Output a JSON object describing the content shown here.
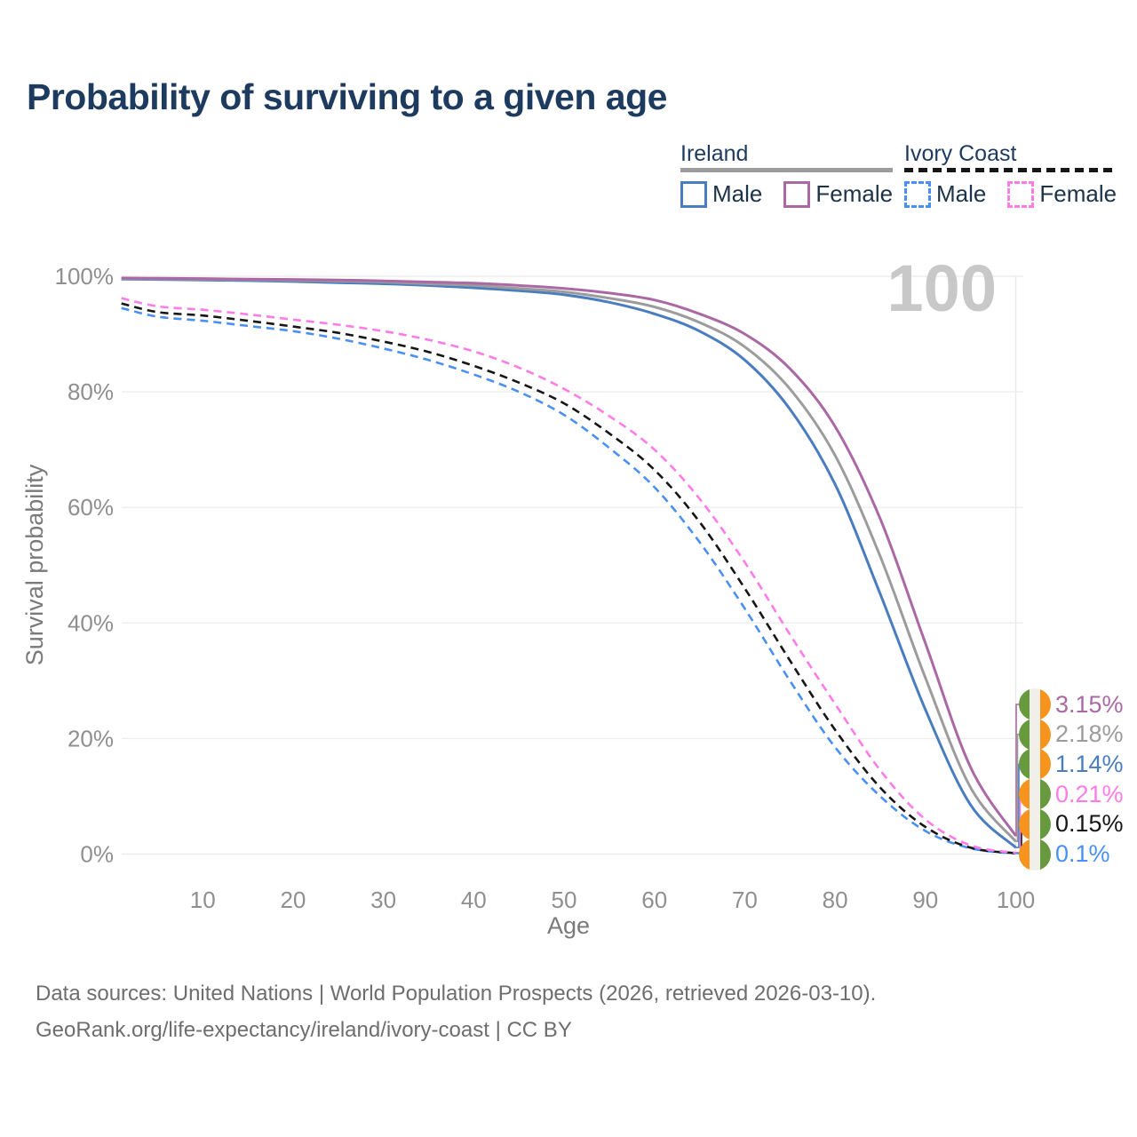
{
  "title": "Probability of surviving to a given age",
  "watermark": "100",
  "legend": {
    "groups": [
      {
        "label": "Ireland",
        "underline_style": "solid",
        "items": [
          {
            "label": "Male",
            "color": "#4a7dbf",
            "dashed": false
          },
          {
            "label": "Female",
            "color": "#aa68a5",
            "dashed": false
          }
        ]
      },
      {
        "label": "Ivory Coast",
        "underline_style": "dashed",
        "items": [
          {
            "label": "Male",
            "color": "#4a90f2",
            "dashed": true
          },
          {
            "label": "Female",
            "color": "#ff7ce8",
            "dashed": true
          }
        ]
      }
    ]
  },
  "chart_data": {
    "type": "line",
    "title": "Probability of surviving to a given age",
    "xlabel": "Age",
    "ylabel": "Survival probability",
    "xlim": [
      0,
      100
    ],
    "ylim": [
      0,
      100
    ],
    "grid": "horizontal",
    "hover_age": "100",
    "xticks": [
      "10",
      "20",
      "30",
      "40",
      "50",
      "60",
      "70",
      "80",
      "90",
      "100"
    ],
    "xtick_values": [
      10,
      20,
      30,
      40,
      50,
      60,
      70,
      80,
      90,
      100
    ],
    "ytick_labels": [
      "0%",
      "20%",
      "40%",
      "60%",
      "80%",
      "100%"
    ],
    "ytick_values": [
      0,
      20,
      40,
      60,
      80,
      100
    ],
    "ages": [
      1,
      5,
      10,
      15,
      20,
      25,
      30,
      35,
      40,
      45,
      50,
      55,
      60,
      65,
      70,
      75,
      80,
      85,
      90,
      95,
      100
    ],
    "series": [
      {
        "name": "Ireland Female",
        "country": "Ireland",
        "sex": "Female",
        "color": "#aa68a5",
        "dashed": false,
        "end_label": "3.15%",
        "flag": "ireland",
        "values": [
          99.7,
          99.65,
          99.6,
          99.5,
          99.45,
          99.35,
          99.2,
          99.0,
          98.8,
          98.4,
          97.9,
          97.1,
          95.9,
          93.5,
          90.0,
          84.0,
          74.0,
          58.0,
          36.5,
          15.0,
          3.15
        ]
      },
      {
        "name": "Ireland Both sexes",
        "country": "Ireland",
        "sex": "Both sexes",
        "color": "#9c9c9c",
        "dashed": false,
        "end_label": "2.18%",
        "flag": "ireland",
        "values": [
          99.6,
          99.55,
          99.5,
          99.4,
          99.3,
          99.15,
          99.0,
          98.7,
          98.4,
          97.9,
          97.3,
          96.2,
          94.7,
          92.0,
          87.8,
          80.5,
          69.0,
          51.5,
          30.5,
          11.5,
          2.18
        ]
      },
      {
        "name": "Ireland Male",
        "country": "Ireland",
        "sex": "Male",
        "color": "#4a7dbf",
        "dashed": false,
        "end_label": "1.14%",
        "flag": "ireland",
        "values": [
          99.5,
          99.45,
          99.35,
          99.25,
          99.1,
          98.9,
          98.7,
          98.4,
          98.0,
          97.5,
          96.8,
          95.5,
          93.5,
          90.5,
          85.5,
          77.0,
          64.0,
          45.0,
          25.0,
          8.5,
          1.14
        ]
      },
      {
        "name": "Ivory Coast Female",
        "country": "Ivory Coast",
        "sex": "Female",
        "color": "#ff7ce8",
        "dashed": true,
        "end_label": "0.21%",
        "flag": "ivory-coast",
        "values": [
          96.2,
          94.8,
          94.2,
          93.4,
          92.5,
          91.6,
          90.5,
          89.0,
          87.0,
          84.2,
          80.5,
          75.8,
          70.0,
          61.5,
          50.5,
          38.0,
          26.0,
          14.5,
          6.0,
          1.5,
          0.21
        ]
      },
      {
        "name": "Ivory Coast Both sexes",
        "country": "Ivory Coast",
        "sex": "Both sexes",
        "color": "#161616",
        "dashed": true,
        "end_label": "0.15%",
        "flag": "ivory-coast",
        "values": [
          95.3,
          93.8,
          93.2,
          92.3,
          91.3,
          90.2,
          88.7,
          86.9,
          84.5,
          81.6,
          78.0,
          72.8,
          66.5,
          57.5,
          46.0,
          33.5,
          21.5,
          11.5,
          4.7,
          1.1,
          0.15
        ]
      },
      {
        "name": "Ivory Coast Male",
        "country": "Ivory Coast",
        "sex": "Male",
        "color": "#4a90f2",
        "dashed": true,
        "end_label": "0.1%",
        "flag": "ivory-coast",
        "values": [
          94.5,
          93.0,
          92.3,
          91.4,
          90.5,
          89.2,
          87.5,
          85.5,
          83.0,
          80.0,
          76.0,
          70.3,
          63.5,
          54.0,
          42.5,
          30.0,
          18.5,
          10.0,
          4.0,
          1.0,
          0.1
        ]
      }
    ]
  },
  "footer": {
    "line1": "Data sources: United Nations | World Population Prospects (2026, retrieved 2026-03-10).",
    "line2": "GeoRank.org/life-expectancy/ireland/ivory-coast | CC BY"
  }
}
